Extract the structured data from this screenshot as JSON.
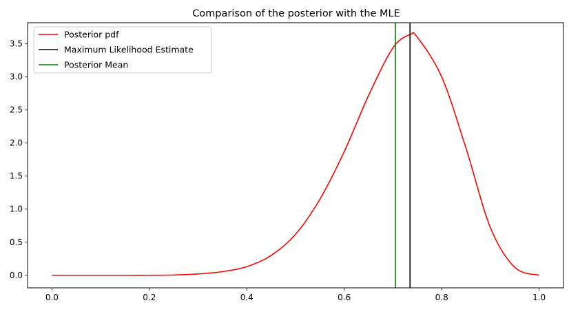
{
  "chart_data": {
    "type": "line",
    "title": "Comparison of the posterior with the MLE",
    "xlabel": "",
    "ylabel": "",
    "xlim": [
      -0.05,
      1.05
    ],
    "ylim": [
      -0.19,
      3.82
    ],
    "xticks": [
      "0.0",
      "0.2",
      "0.4",
      "0.6",
      "0.8",
      "1.0"
    ],
    "yticks": [
      "0.0",
      "0.5",
      "1.0",
      "1.5",
      "2.0",
      "2.5",
      "3.0",
      "3.5"
    ],
    "grid": false,
    "legend_position": "top-left",
    "series": [
      {
        "name": "Posterior pdf",
        "color": "#ff0000",
        "x": [
          0.0,
          0.05,
          0.1,
          0.15,
          0.2,
          0.25,
          0.3,
          0.35,
          0.4,
          0.45,
          0.5,
          0.55,
          0.6,
          0.65,
          0.7,
          0.735,
          0.75,
          0.8,
          0.85,
          0.9,
          0.95,
          1.0
        ],
        "y": [
          0.0,
          0.0,
          0.0,
          0.0,
          0.0,
          0.004,
          0.02,
          0.055,
          0.13,
          0.3,
          0.62,
          1.15,
          1.87,
          2.72,
          3.44,
          3.64,
          3.6,
          3.0,
          1.92,
          0.72,
          0.12,
          0.0
        ]
      },
      {
        "name": "Maximum Likelihood Estimate",
        "color": "#000000",
        "vline_x": 0.735
      },
      {
        "name": "Posterior Mean",
        "color": "#008000",
        "vline_x": 0.705
      }
    ]
  }
}
